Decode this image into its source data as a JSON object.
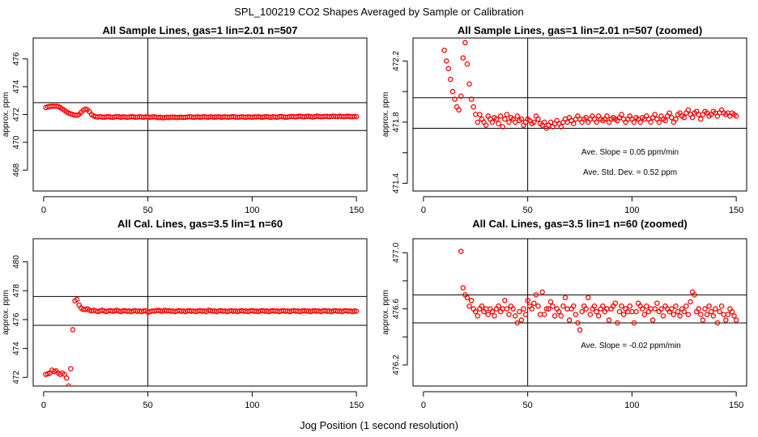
{
  "figure": {
    "title": "SPL_100219  CO2 Shapes Averaged by Sample or Calibration",
    "xlabel": "Jog Position (1 second resolution)"
  },
  "chart_data": [
    {
      "type": "scatter",
      "title": "All Sample Lines, gas=1 lin=2.01 n=507",
      "ylabel": "approx. ppm",
      "xlim": [
        -5,
        155
      ],
      "ylim": [
        466.5,
        477.5
      ],
      "xticks": [
        "0",
        "50",
        "100",
        "150"
      ],
      "yticks": [
        "468",
        "470",
        "472",
        "474",
        "476"
      ],
      "ytick_values": [
        468,
        470,
        472,
        474,
        476
      ],
      "hlines": [
        472.85,
        470.85
      ],
      "vline": 50,
      "annotations": [],
      "x": [
        1,
        2,
        3,
        4,
        5,
        6,
        7,
        8,
        9,
        10,
        11,
        12,
        13,
        14,
        15,
        16,
        17,
        18,
        19,
        20,
        21,
        22,
        23,
        24,
        25,
        26,
        27,
        28,
        29,
        30,
        31,
        32,
        33,
        34,
        35,
        36,
        37,
        38,
        39,
        40,
        41,
        42,
        43,
        44,
        45,
        46,
        47,
        48,
        49,
        50,
        51,
        52,
        53,
        54,
        55,
        56,
        57,
        58,
        59,
        60,
        61,
        62,
        63,
        64,
        65,
        66,
        67,
        68,
        69,
        70,
        71,
        72,
        73,
        74,
        75,
        76,
        77,
        78,
        79,
        80,
        81,
        82,
        83,
        84,
        85,
        86,
        87,
        88,
        89,
        90,
        91,
        92,
        93,
        94,
        95,
        96,
        97,
        98,
        99,
        100,
        101,
        102,
        103,
        104,
        105,
        106,
        107,
        108,
        109,
        110,
        111,
        112,
        113,
        114,
        115,
        116,
        117,
        118,
        119,
        120,
        121,
        122,
        123,
        124,
        125,
        126,
        127,
        128,
        129,
        130,
        131,
        132,
        133,
        134,
        135,
        136,
        137,
        138,
        139,
        140,
        141,
        142,
        143,
        144,
        145,
        146,
        147,
        148,
        149,
        150
      ],
      "y": [
        472.5,
        472.55,
        472.58,
        472.6,
        472.6,
        472.6,
        472.58,
        472.5,
        472.4,
        472.3,
        472.2,
        472.1,
        472.05,
        472.0,
        471.95,
        471.95,
        472.0,
        472.15,
        472.3,
        472.4,
        472.35,
        472.2,
        472.0,
        471.9,
        471.85,
        471.82,
        471.85,
        471.82,
        471.8,
        471.83,
        471.85,
        471.82,
        471.8,
        471.82,
        471.85,
        471.84,
        471.8,
        471.83,
        471.82,
        471.8,
        471.82,
        471.85,
        471.83,
        471.8,
        471.82,
        471.84,
        471.82,
        471.8,
        471.83,
        471.82,
        471.8,
        471.82,
        471.83,
        471.81,
        471.78,
        471.8,
        471.76,
        471.78,
        471.8,
        471.78,
        471.8,
        471.82,
        471.8,
        471.78,
        471.8,
        471.81,
        471.79,
        471.8,
        471.82,
        471.84,
        471.82,
        471.8,
        471.82,
        471.83,
        471.8,
        471.82,
        471.84,
        471.82,
        471.8,
        471.84,
        471.82,
        471.81,
        471.82,
        471.84,
        471.8,
        471.82,
        471.83,
        471.82,
        471.81,
        471.83,
        471.85,
        471.82,
        471.8,
        471.82,
        471.84,
        471.82,
        471.8,
        471.83,
        471.82,
        471.8,
        471.83,
        471.82,
        471.84,
        471.82,
        471.8,
        471.83,
        471.85,
        471.82,
        471.8,
        471.84,
        471.82,
        471.81,
        471.84,
        471.86,
        471.83,
        471.8,
        471.82,
        471.85,
        471.86,
        471.84,
        471.83,
        471.86,
        471.88,
        471.85,
        471.83,
        471.86,
        471.88,
        471.85,
        471.82,
        471.85,
        471.88,
        471.86,
        471.84,
        471.85,
        471.87,
        471.86,
        471.84,
        471.86,
        471.88,
        471.86,
        471.85,
        471.88,
        471.86,
        471.84,
        471.86,
        471.88,
        471.85,
        471.84,
        471.86,
        471.85
      ]
    },
    {
      "type": "scatter",
      "title": "All Sample Lines, gas=1 lin=2.01 n=507 (zoomed)",
      "ylabel": "approx. ppm",
      "xlim": [
        -5,
        155
      ],
      "ylim": [
        471.35,
        472.35
      ],
      "xticks": [
        "0",
        "50",
        "100",
        "150"
      ],
      "yticks": [
        "471.4",
        "471.8",
        "472.2"
      ],
      "ytick_values": [
        471.4,
        471.6,
        471.8,
        472.0,
        472.2
      ],
      "ytick_label_values": [
        471.4,
        471.8,
        472.2
      ],
      "hlines": [
        471.96,
        471.76
      ],
      "vline": 50,
      "annotations": [
        "Ave. Slope =  0.05  ppm/min",
        "Ave. Std. Dev. =  0.52  ppm"
      ],
      "x": [
        10,
        11,
        12,
        13,
        14,
        15,
        16,
        17,
        18,
        19,
        20,
        21,
        22,
        23,
        24,
        25,
        26,
        27,
        28,
        29,
        30,
        31,
        32,
        33,
        34,
        35,
        36,
        37,
        38,
        39,
        40,
        41,
        42,
        43,
        44,
        45,
        46,
        47,
        48,
        49,
        50,
        51,
        52,
        53,
        54,
        55,
        56,
        57,
        58,
        59,
        60,
        61,
        62,
        63,
        64,
        65,
        66,
        67,
        68,
        69,
        70,
        71,
        72,
        73,
        74,
        75,
        76,
        77,
        78,
        79,
        80,
        81,
        82,
        83,
        84,
        85,
        86,
        87,
        88,
        89,
        90,
        91,
        92,
        93,
        94,
        95,
        96,
        97,
        98,
        99,
        100,
        101,
        102,
        103,
        104,
        105,
        106,
        107,
        108,
        109,
        110,
        111,
        112,
        113,
        114,
        115,
        116,
        117,
        118,
        119,
        120,
        121,
        122,
        123,
        124,
        125,
        126,
        127,
        128,
        129,
        130,
        131,
        132,
        133,
        134,
        135,
        136,
        137,
        138,
        139,
        140,
        141,
        142,
        143,
        144,
        145,
        146,
        147,
        148,
        149,
        150
      ],
      "y": [
        472.27,
        472.2,
        472.15,
        472.08,
        472.0,
        471.95,
        471.9,
        471.88,
        471.97,
        472.22,
        472.32,
        472.18,
        472.05,
        471.95,
        471.9,
        471.85,
        471.8,
        471.85,
        471.82,
        471.8,
        471.78,
        471.84,
        471.82,
        471.8,
        471.83,
        471.82,
        471.79,
        471.84,
        471.77,
        471.82,
        471.85,
        471.8,
        471.83,
        471.82,
        471.8,
        471.84,
        471.81,
        471.82,
        471.78,
        471.8,
        471.82,
        471.81,
        471.79,
        471.8,
        471.84,
        471.82,
        471.79,
        471.78,
        471.8,
        471.76,
        471.78,
        471.8,
        471.77,
        471.79,
        471.81,
        471.79,
        471.77,
        471.8,
        471.82,
        471.8,
        471.83,
        471.81,
        471.79,
        471.82,
        471.84,
        471.82,
        471.8,
        471.82,
        471.83,
        471.8,
        471.82,
        471.84,
        471.82,
        471.8,
        471.84,
        471.82,
        471.81,
        471.82,
        471.84,
        471.8,
        471.82,
        471.83,
        471.82,
        471.81,
        471.83,
        471.85,
        471.82,
        471.8,
        471.82,
        471.84,
        471.82,
        471.8,
        471.83,
        471.82,
        471.8,
        471.83,
        471.82,
        471.84,
        471.82,
        471.8,
        471.83,
        471.85,
        471.82,
        471.8,
        471.84,
        471.82,
        471.81,
        471.84,
        471.86,
        471.83,
        471.8,
        471.82,
        471.85,
        471.86,
        471.84,
        471.83,
        471.86,
        471.88,
        471.85,
        471.83,
        471.86,
        471.87,
        471.85,
        471.82,
        471.85,
        471.87,
        471.86,
        471.84,
        471.85,
        471.87,
        471.86,
        471.84,
        471.86,
        471.88,
        471.86,
        471.85,
        471.86,
        471.84,
        471.86,
        471.85,
        471.84
      ]
    },
    {
      "type": "scatter",
      "title": "All Cal. Lines, gas=3.5 lin=1 n=60",
      "ylabel": "approx. ppm",
      "xlim": [
        -5,
        155
      ],
      "ylim": [
        471.4,
        481.6
      ],
      "xticks": [
        "0",
        "50",
        "100",
        "150"
      ],
      "yticks": [
        "472",
        "474",
        "476",
        "478",
        "480"
      ],
      "ytick_values": [
        472,
        474,
        476,
        478,
        480
      ],
      "hlines": [
        477.6,
        475.6
      ],
      "vline": 50,
      "annotations": [],
      "x": [
        1,
        2,
        3,
        4,
        5,
        6,
        7,
        8,
        9,
        10,
        11,
        12,
        13,
        14,
        15,
        16,
        17,
        18,
        19,
        20,
        21,
        22,
        23,
        24,
        25,
        26,
        27,
        28,
        29,
        30,
        31,
        32,
        33,
        34,
        35,
        36,
        37,
        38,
        39,
        40,
        41,
        42,
        43,
        44,
        45,
        46,
        47,
        48,
        49,
        50,
        51,
        52,
        53,
        54,
        55,
        56,
        57,
        58,
        59,
        60,
        61,
        62,
        63,
        64,
        65,
        66,
        67,
        68,
        69,
        70,
        71,
        72,
        73,
        74,
        75,
        76,
        77,
        78,
        79,
        80,
        81,
        82,
        83,
        84,
        85,
        86,
        87,
        88,
        89,
        90,
        91,
        92,
        93,
        94,
        95,
        96,
        97,
        98,
        99,
        100,
        101,
        102,
        103,
        104,
        105,
        106,
        107,
        108,
        109,
        110,
        111,
        112,
        113,
        114,
        115,
        116,
        117,
        118,
        119,
        120,
        121,
        122,
        123,
        124,
        125,
        126,
        127,
        128,
        129,
        130,
        131,
        132,
        133,
        134,
        135,
        136,
        137,
        138,
        139,
        140,
        141,
        142,
        143,
        144,
        145,
        146,
        147,
        148,
        149,
        150
      ],
      "y": [
        472.2,
        472.25,
        472.3,
        472.5,
        472.4,
        472.45,
        472.3,
        472.2,
        472.3,
        472.2,
        471.95,
        471.4,
        472.6,
        475.3,
        477.3,
        477.4,
        477.0,
        476.8,
        476.7,
        476.7,
        476.75,
        476.65,
        476.6,
        476.65,
        476.6,
        476.55,
        476.6,
        476.65,
        476.6,
        476.55,
        476.6,
        476.62,
        476.58,
        476.6,
        476.65,
        476.6,
        476.55,
        476.6,
        476.62,
        476.58,
        476.6,
        476.55,
        476.6,
        476.62,
        476.58,
        476.6,
        476.55,
        476.6,
        476.62,
        476.5,
        476.55,
        476.6,
        476.58,
        476.62,
        476.65,
        476.6,
        476.58,
        476.65,
        476.6,
        476.62,
        476.58,
        476.6,
        476.55,
        476.6,
        476.62,
        476.58,
        476.6,
        476.55,
        476.6,
        476.62,
        476.58,
        476.6,
        476.55,
        476.6,
        476.62,
        476.58,
        476.6,
        476.55,
        476.65,
        476.62,
        476.58,
        476.6,
        476.55,
        476.6,
        476.62,
        476.58,
        476.6,
        476.55,
        476.6,
        476.62,
        476.58,
        476.6,
        476.55,
        476.6,
        476.62,
        476.58,
        476.6,
        476.55,
        476.6,
        476.62,
        476.58,
        476.6,
        476.55,
        476.6,
        476.62,
        476.58,
        476.6,
        476.55,
        476.6,
        476.62,
        476.58,
        476.6,
        476.55,
        476.6,
        476.62,
        476.58,
        476.6,
        476.55,
        476.6,
        476.62,
        476.58,
        476.6,
        476.55,
        476.6,
        476.62,
        476.58,
        476.6,
        476.55,
        476.6,
        476.62,
        476.58,
        476.6,
        476.55,
        476.6,
        476.62,
        476.58,
        476.6,
        476.55,
        476.6,
        476.62,
        476.58,
        476.6,
        476.55,
        476.6,
        476.62,
        476.58,
        476.6,
        476.55,
        476.6,
        476.58
      ]
    },
    {
      "type": "scatter",
      "title": "All Cal. Lines, gas=3.5 lin=1 n=60 (zoomed)",
      "ylabel": "approx. ppm",
      "xlim": [
        -5,
        155
      ],
      "ylim": [
        476.05,
        477.1
      ],
      "xticks": [
        "0",
        "50",
        "100",
        "150"
      ],
      "yticks": [
        "476.2",
        "476.6",
        "477.0"
      ],
      "ytick_values": [
        476.2,
        476.4,
        476.6,
        476.8,
        477.0
      ],
      "ytick_label_values": [
        476.2,
        476.6,
        477.0
      ],
      "hlines": [
        476.7,
        476.5
      ],
      "vline": 50,
      "annotations": [
        "Ave. Slope =  -0.02  ppm/min"
      ],
      "x": [
        18,
        19,
        20,
        21,
        22,
        23,
        24,
        25,
        26,
        27,
        28,
        29,
        30,
        31,
        32,
        33,
        34,
        35,
        36,
        37,
        38,
        39,
        40,
        41,
        42,
        43,
        44,
        45,
        46,
        47,
        48,
        49,
        50,
        51,
        52,
        53,
        54,
        55,
        56,
        57,
        58,
        59,
        60,
        61,
        62,
        63,
        64,
        65,
        66,
        67,
        68,
        69,
        70,
        71,
        72,
        73,
        74,
        75,
        76,
        77,
        78,
        79,
        80,
        81,
        82,
        83,
        84,
        85,
        86,
        87,
        88,
        89,
        90,
        91,
        92,
        93,
        94,
        95,
        96,
        97,
        98,
        99,
        100,
        101,
        102,
        103,
        104,
        105,
        106,
        107,
        108,
        109,
        110,
        111,
        112,
        113,
        114,
        115,
        116,
        117,
        118,
        119,
        120,
        121,
        122,
        123,
        124,
        125,
        126,
        127,
        128,
        129,
        130,
        131,
        132,
        133,
        134,
        135,
        136,
        137,
        138,
        139,
        140,
        141,
        142,
        143,
        144,
        145,
        146,
        147,
        148,
        149,
        150
      ],
      "y": [
        477.01,
        476.75,
        476.7,
        476.68,
        476.62,
        476.66,
        476.6,
        476.58,
        476.55,
        476.6,
        476.62,
        476.58,
        476.6,
        476.56,
        476.6,
        476.58,
        476.55,
        476.6,
        476.62,
        476.58,
        476.6,
        476.66,
        476.6,
        476.56,
        476.62,
        476.6,
        476.55,
        476.5,
        476.58,
        476.52,
        476.6,
        476.56,
        476.66,
        476.62,
        476.6,
        476.64,
        476.7,
        476.62,
        476.56,
        476.72,
        476.56,
        476.6,
        476.6,
        476.65,
        476.62,
        476.55,
        476.6,
        476.58,
        476.55,
        476.62,
        476.68,
        476.6,
        476.52,
        476.6,
        476.62,
        476.56,
        476.5,
        476.45,
        476.58,
        476.62,
        476.6,
        476.68,
        476.56,
        476.6,
        476.62,
        476.58,
        476.55,
        476.6,
        476.62,
        476.58,
        476.6,
        476.52,
        476.6,
        476.62,
        476.64,
        476.5,
        476.58,
        476.62,
        476.56,
        476.6,
        476.58,
        476.62,
        476.58,
        476.5,
        476.58,
        476.64,
        476.62,
        476.6,
        476.56,
        476.62,
        476.58,
        476.6,
        476.52,
        476.6,
        476.64,
        476.58,
        476.6,
        476.55,
        476.62,
        476.6,
        476.58,
        476.6,
        476.56,
        476.62,
        476.58,
        476.55,
        476.6,
        476.58,
        476.62,
        476.56,
        476.65,
        476.72,
        476.7,
        476.58,
        476.6,
        476.56,
        476.52,
        476.6,
        476.56,
        476.62,
        476.58,
        476.55,
        476.6,
        476.5,
        476.58,
        476.62,
        476.56,
        476.52,
        476.56,
        476.6,
        476.58,
        476.55,
        476.52
      ]
    }
  ]
}
